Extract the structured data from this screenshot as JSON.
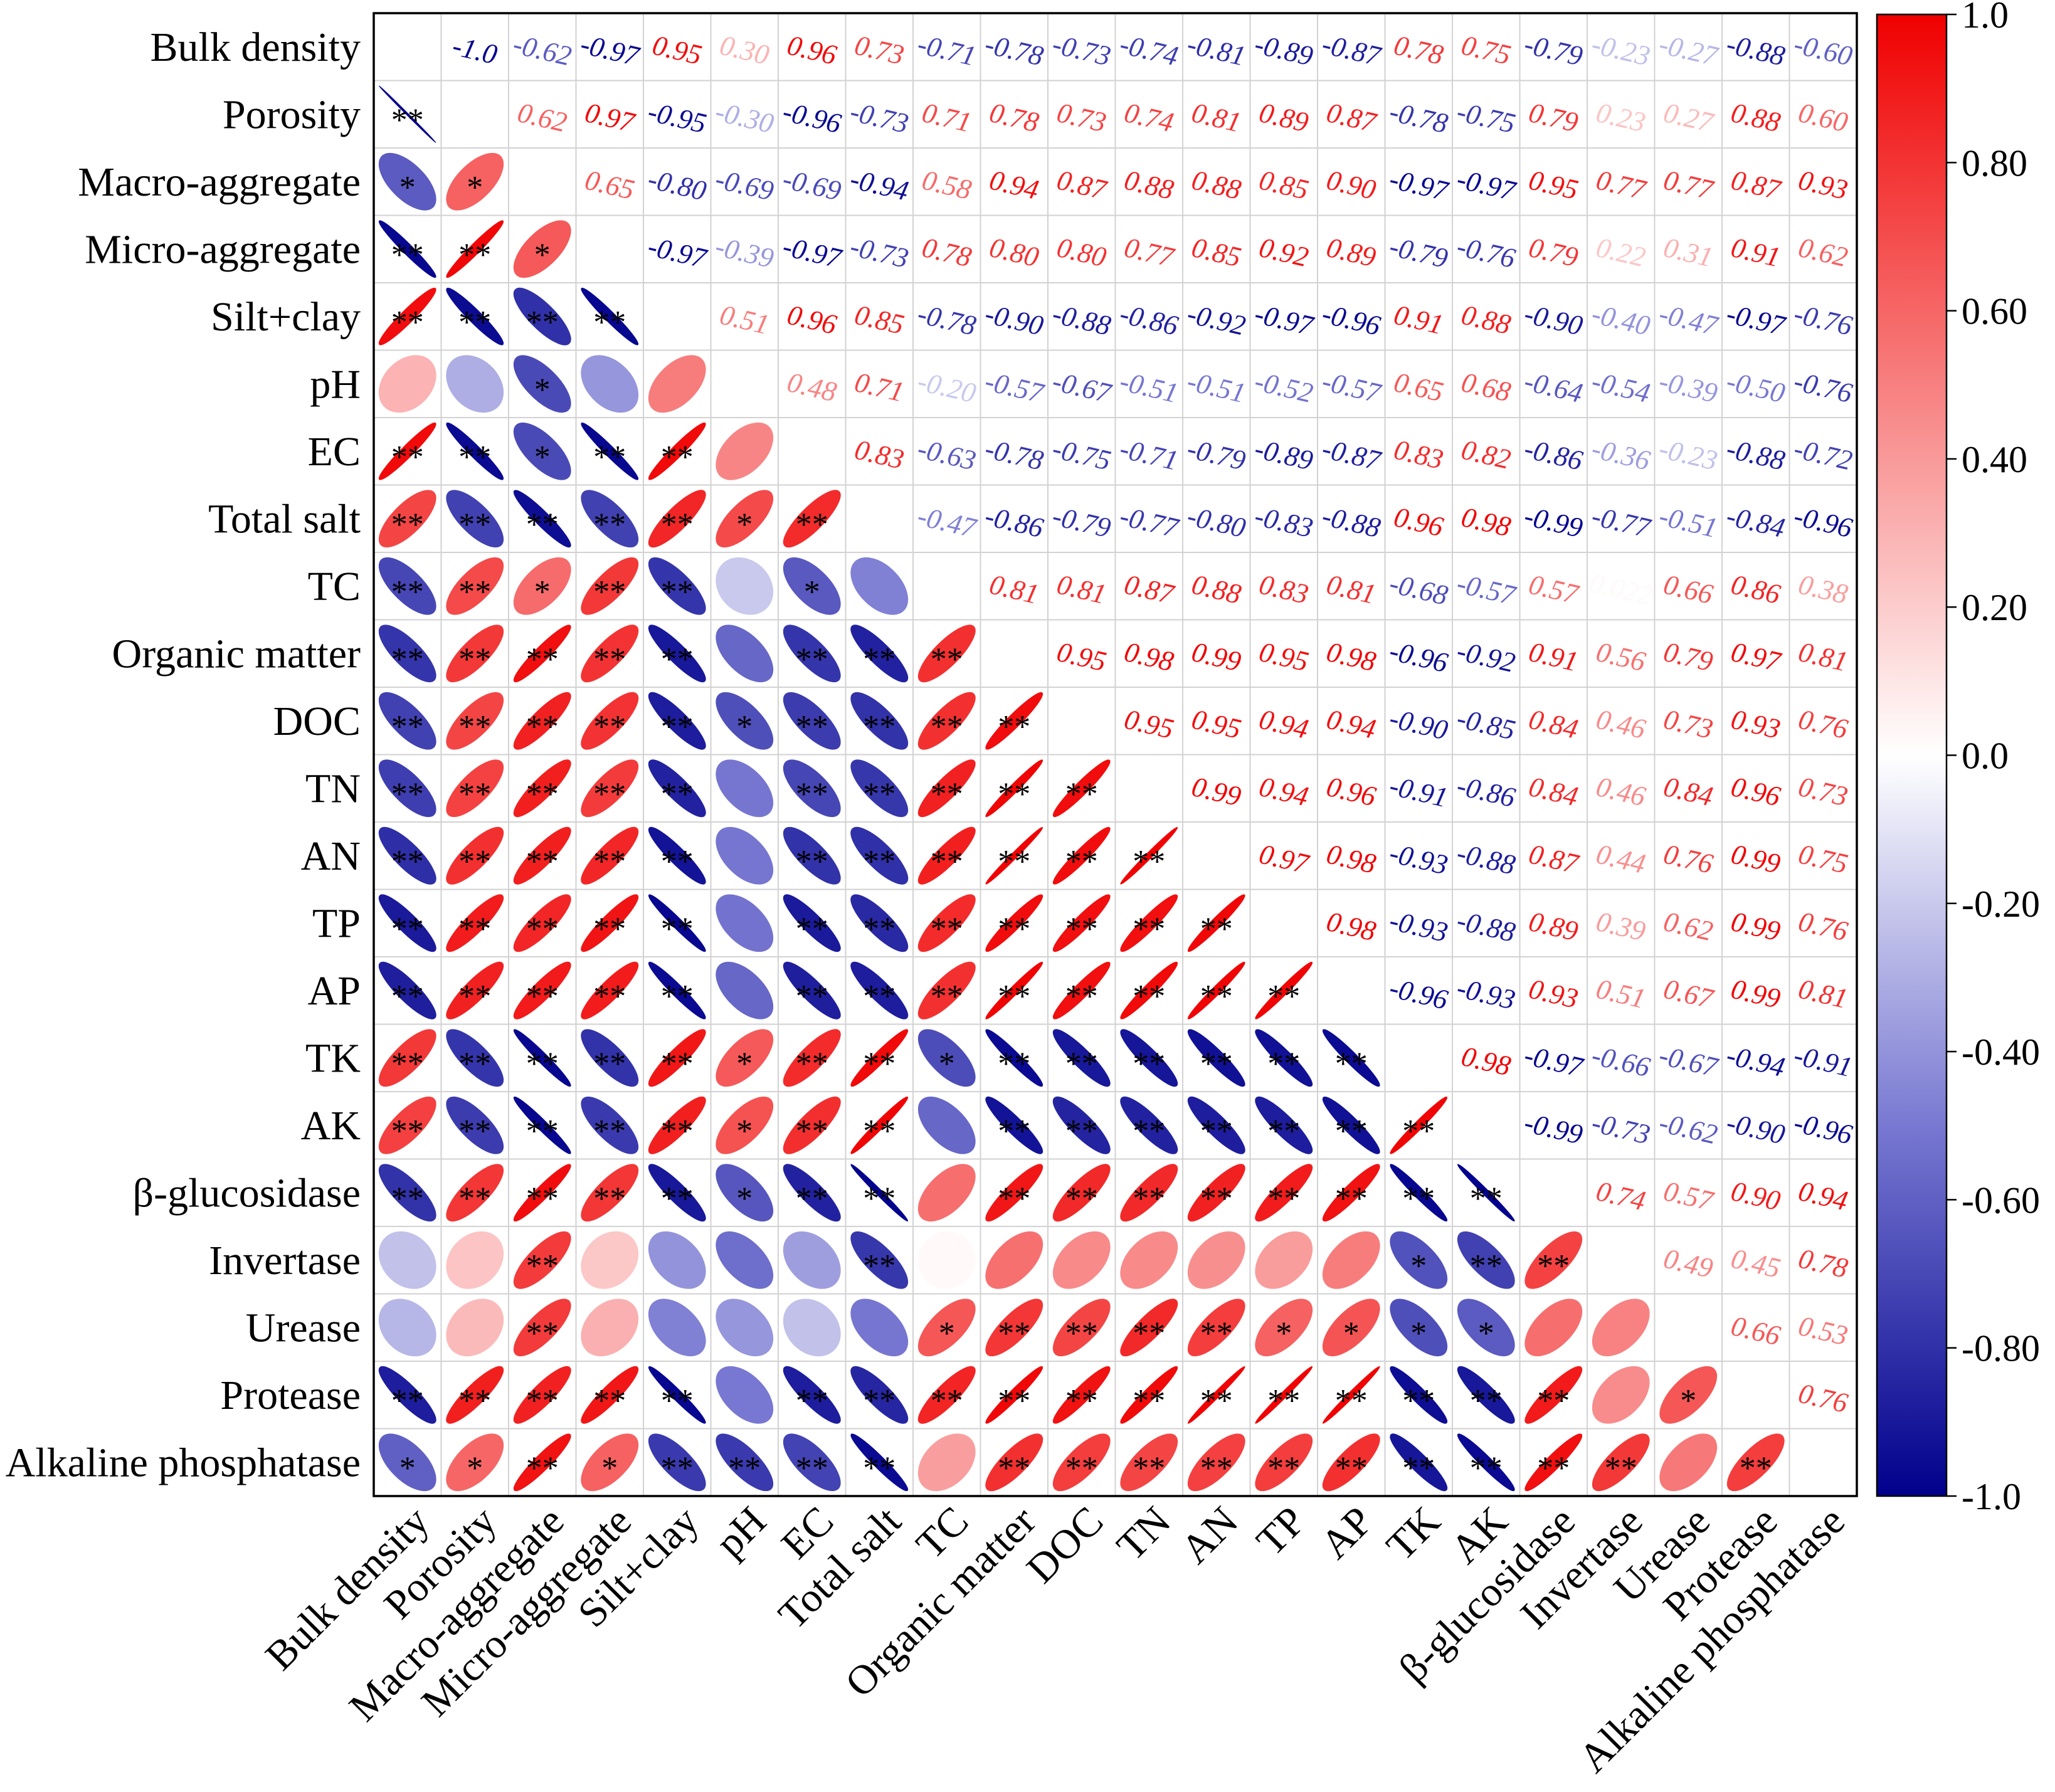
{
  "chart_data": {
    "type": "heatmap",
    "subtype": "correlation-matrix",
    "variables": [
      "Bulk density",
      "Porosity",
      "Macro-aggregate",
      "Micro-aggregate",
      "Silt+clay",
      "pH",
      "EC",
      "Total salt",
      "TC",
      "Organic matter",
      "DOC",
      "TN",
      "AN",
      "TP",
      "AP",
      "TK",
      "AK",
      "β-glucosidase",
      "Invertase",
      "Urease",
      "Protease",
      "Alkaline phosphatase"
    ],
    "r_upper": [
      [
        "-1.0",
        "-0.62",
        "-0.97",
        "0.95",
        "0.30",
        "0.96",
        "0.73",
        "-0.71",
        "-0.78",
        "-0.73",
        "-0.74",
        "-0.81",
        "-0.89",
        "-0.87",
        "0.78",
        "0.75",
        "-0.79",
        "-0.23",
        "-0.27",
        "-0.88",
        "-0.60"
      ],
      [
        "0.62",
        "0.97",
        "-0.95",
        "-0.30",
        "-0.96",
        "-0.73",
        "0.71",
        "0.78",
        "0.73",
        "0.74",
        "0.81",
        "0.89",
        "0.87",
        "-0.78",
        "-0.75",
        "0.79",
        "0.23",
        "0.27",
        "0.88",
        "0.60"
      ],
      [
        "0.65",
        "-0.80",
        "-0.69",
        "-0.69",
        "-0.94",
        "0.58",
        "0.94",
        "0.87",
        "0.88",
        "0.88",
        "0.85",
        "0.90",
        "-0.97",
        "-0.97",
        "0.95",
        "0.77",
        "0.77",
        "0.87",
        "0.93"
      ],
      [
        "-0.97",
        "-0.39",
        "-0.97",
        "-0.73",
        "0.78",
        "0.80",
        "0.80",
        "0.77",
        "0.85",
        "0.92",
        "0.89",
        "-0.79",
        "-0.76",
        "0.79",
        "0.22",
        "0.31",
        "0.91",
        "0.62"
      ],
      [
        "0.51",
        "0.96",
        "0.85",
        "-0.78",
        "-0.90",
        "-0.88",
        "-0.86",
        "-0.92",
        "-0.97",
        "-0.96",
        "0.91",
        "0.88",
        "-0.90",
        "-0.40",
        "-0.47",
        "-0.97",
        "-0.76"
      ],
      [
        "0.48",
        "0.71",
        "-0.20",
        "-0.57",
        "-0.67",
        "-0.51",
        "-0.51",
        "-0.52",
        "-0.57",
        "0.65",
        "0.68",
        "-0.64",
        "-0.54",
        "-0.39",
        "-0.50",
        "-0.76"
      ],
      [
        "0.83",
        "-0.63",
        "-0.78",
        "-0.75",
        "-0.71",
        "-0.79",
        "-0.89",
        "-0.87",
        "0.83",
        "0.82",
        "-0.86",
        "-0.36",
        "-0.23",
        "-0.88",
        "-0.72"
      ],
      [
        "-0.47",
        "-0.86",
        "-0.79",
        "-0.77",
        "-0.80",
        "-0.83",
        "-0.88",
        "0.96",
        "0.98",
        "-0.99",
        "-0.77",
        "-0.51",
        "-0.84",
        "-0.96"
      ],
      [
        "0.81",
        "0.81",
        "0.87",
        "0.88",
        "0.83",
        "0.81",
        "-0.68",
        "-0.57",
        "0.57",
        "0.022",
        "0.66",
        "0.86",
        "0.38"
      ],
      [
        "0.95",
        "0.98",
        "0.99",
        "0.95",
        "0.98",
        "-0.96",
        "-0.92",
        "0.91",
        "0.56",
        "0.79",
        "0.97",
        "0.81"
      ],
      [
        "0.95",
        "0.95",
        "0.94",
        "0.94",
        "-0.90",
        "-0.85",
        "0.84",
        "0.46",
        "0.73",
        "0.93",
        "0.76"
      ],
      [
        "0.99",
        "0.94",
        "0.96",
        "-0.91",
        "-0.86",
        "0.84",
        "0.46",
        "0.84",
        "0.96",
        "0.73"
      ],
      [
        "0.97",
        "0.98",
        "-0.93",
        "-0.88",
        "0.87",
        "0.44",
        "0.76",
        "0.99",
        "0.75"
      ],
      [
        "0.98",
        "-0.93",
        "-0.88",
        "0.89",
        "0.39",
        "0.62",
        "0.99",
        "0.76"
      ],
      [
        "-0.96",
        "-0.93",
        "0.93",
        "0.51",
        "0.67",
        "0.99",
        "0.81"
      ],
      [
        "0.98",
        "-0.97",
        "-0.66",
        "-0.67",
        "-0.94",
        "-0.91"
      ],
      [
        "-0.99",
        "-0.73",
        "-0.62",
        "-0.90",
        "-0.96"
      ],
      [
        "0.74",
        "0.57",
        "0.90",
        "0.94"
      ],
      [
        "0.49",
        "0.45",
        "0.78"
      ],
      [
        "0.66",
        "0.53"
      ],
      [
        "0.76"
      ]
    ],
    "stars_lower": [
      [
        "**"
      ],
      [
        "*",
        "*"
      ],
      [
        "**",
        "**",
        "*"
      ],
      [
        "**",
        "**",
        "**",
        "**"
      ],
      [
        "",
        "",
        "*",
        "",
        ""
      ],
      [
        "**",
        "**",
        "*",
        "**",
        "**",
        ""
      ],
      [
        "**",
        "**",
        "**",
        "**",
        "**",
        "*",
        "**"
      ],
      [
        "**",
        "**",
        "*",
        "**",
        "**",
        "",
        "*",
        ""
      ],
      [
        "**",
        "**",
        "**",
        "**",
        "**",
        "",
        "**",
        "**",
        "**"
      ],
      [
        "**",
        "**",
        "**",
        "**",
        "**",
        "*",
        "**",
        "**",
        "**",
        "**"
      ],
      [
        "**",
        "**",
        "**",
        "**",
        "**",
        "",
        "**",
        "**",
        "**",
        "**",
        "**"
      ],
      [
        "**",
        "**",
        "**",
        "**",
        "**",
        "",
        "**",
        "**",
        "**",
        "**",
        "**",
        "**"
      ],
      [
        "**",
        "**",
        "**",
        "**",
        "**",
        "",
        "**",
        "**",
        "**",
        "**",
        "**",
        "**",
        "**"
      ],
      [
        "**",
        "**",
        "**",
        "**",
        "**",
        "",
        "**",
        "**",
        "**",
        "**",
        "**",
        "**",
        "**",
        "**"
      ],
      [
        "**",
        "**",
        "**",
        "**",
        "**",
        "*",
        "**",
        "**",
        "*",
        "**",
        "**",
        "**",
        "**",
        "**",
        "**"
      ],
      [
        "**",
        "**",
        "**",
        "**",
        "**",
        "*",
        "**",
        "**",
        "",
        "**",
        "**",
        "**",
        "**",
        "**",
        "**",
        "**"
      ],
      [
        "**",
        "**",
        "**",
        "**",
        "**",
        "*",
        "**",
        "**",
        "",
        "**",
        "**",
        "**",
        "**",
        "**",
        "**",
        "**",
        "**"
      ],
      [
        "",
        "",
        "**",
        "",
        "",
        "",
        "",
        "**",
        "",
        "",
        "",
        "",
        "",
        "",
        "",
        "*",
        "**",
        "**"
      ],
      [
        "",
        "",
        "**",
        "",
        "",
        "",
        "",
        "",
        "*",
        "**",
        "**",
        "**",
        "**",
        "*",
        "*",
        "*",
        "*",
        "",
        ""
      ],
      [
        "**",
        "**",
        "**",
        "**",
        "**",
        "",
        "**",
        "**",
        "**",
        "**",
        "**",
        "**",
        "**",
        "**",
        "**",
        "**",
        "**",
        "**",
        "",
        "*"
      ],
      [
        "*",
        "*",
        "**",
        "*",
        "**",
        "**",
        "**",
        "**",
        "",
        "**",
        "**",
        "**",
        "**",
        "**",
        "**",
        "**",
        "**",
        "**",
        "**",
        "",
        "**"
      ]
    ],
    "colorbar": {
      "ticks": [
        "1.0",
        "0.80",
        "0.60",
        "0.40",
        "0.20",
        "0.0",
        "-0.20",
        "-0.40",
        "-0.60",
        "-0.80",
        "-1.0"
      ],
      "range": [
        -1,
        1
      ]
    },
    "colors": {
      "positive": "#f00000",
      "neutral": "#ffffff",
      "negative_mid": "#7878d2",
      "negative": "#00008c",
      "grid": "#d2d2d2",
      "frame": "#000000",
      "stars": "#000000",
      "labels": "#000000"
    }
  }
}
